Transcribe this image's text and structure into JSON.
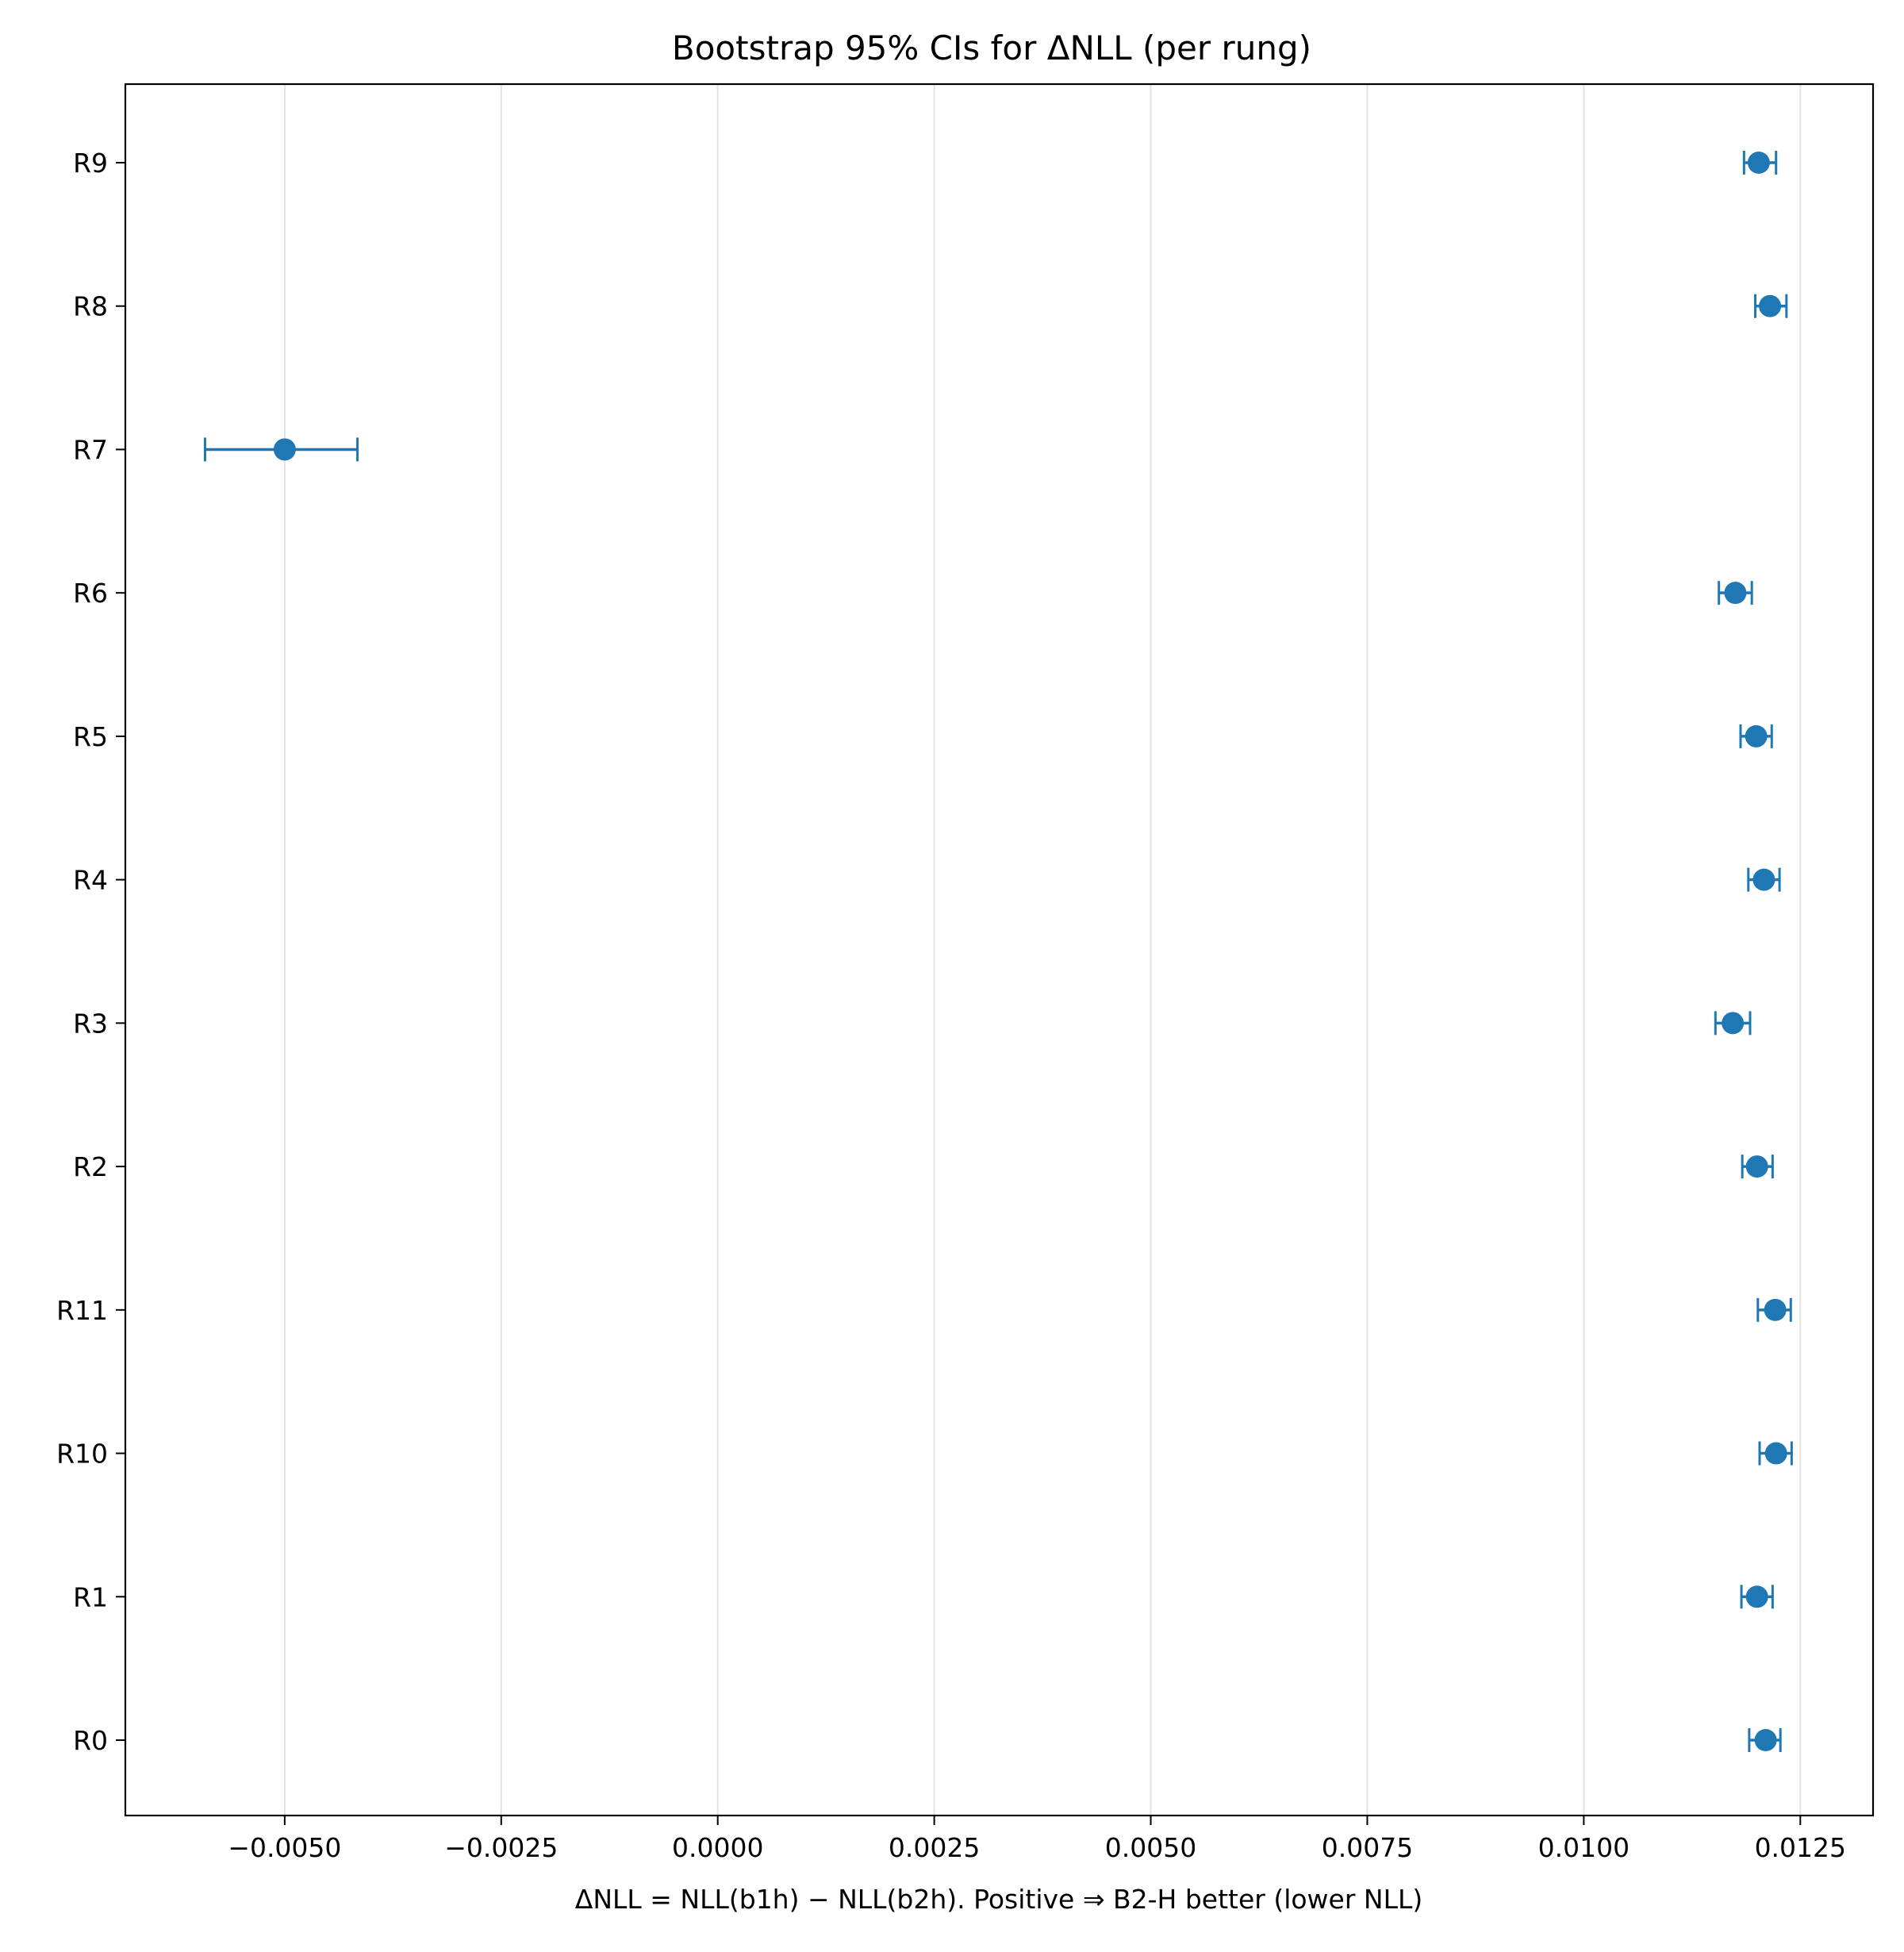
{
  "chart_data": {
    "type": "errorbar",
    "title": "Bootstrap 95% CIs for ΔNLL (per rung)",
    "xlabel": "ΔNLL = NLL(b1h) − NLL(b2h). Positive ⇒ B2-H better (lower NLL)",
    "ylabel": "",
    "xlim": [
      -0.00684,
      0.01334
    ],
    "x_ticks": [
      -0.005,
      -0.0025,
      0.0,
      0.0025,
      0.005,
      0.0075,
      0.01,
      0.0125
    ],
    "x_tick_labels": [
      "−0.0050",
      "−0.0025",
      "0.0000",
      "0.0025",
      "0.0050",
      "0.0075",
      "0.0100",
      "0.0125"
    ],
    "grid": "vertical",
    "color": "#1f77b4",
    "series": [
      {
        "categories": [
          "R0",
          "R1",
          "R10",
          "R11",
          "R2",
          "R3",
          "R4",
          "R5",
          "R6",
          "R7",
          "R8",
          "R9"
        ],
        "point": [
          0.0121,
          0.012,
          0.01222,
          0.01221,
          0.012,
          0.01172,
          0.01208,
          0.01199,
          0.01175,
          -0.005,
          0.01215,
          0.01202
        ],
        "ci_low": [
          0.01191,
          0.01182,
          0.01203,
          0.01201,
          0.01183,
          0.01152,
          0.0119,
          0.01181,
          0.01156,
          -0.00592,
          0.01198,
          0.01185
        ],
        "ci_high": [
          0.01227,
          0.01218,
          0.0124,
          0.01239,
          0.01218,
          0.01192,
          0.01226,
          0.01217,
          0.01194,
          -0.00416,
          0.01234,
          0.01222
        ]
      }
    ]
  }
}
